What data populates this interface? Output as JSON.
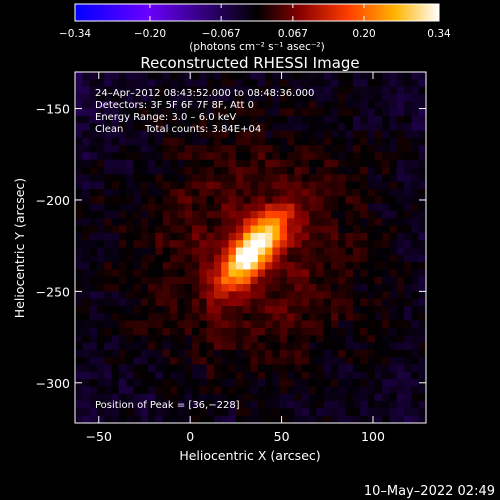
{
  "chart_data": {
    "type": "heatmap",
    "title": "Reconstructed RHESSI Image",
    "xlabel": "Heliocentric X (arcsec)",
    "ylabel": "Heliocentric Y (arcsec)",
    "xlim": [
      -63,
      129
    ],
    "ylim": [
      -322,
      -130
    ],
    "x_ticks": [
      -50,
      0,
      50,
      100
    ],
    "y_ticks": [
      -150,
      -200,
      -250,
      -300
    ],
    "x_tick_labels": [
      "−50",
      "0",
      "50",
      "100"
    ],
    "y_tick_labels": [
      "−150",
      "−200",
      "−250",
      "−300"
    ],
    "colorbar": {
      "range": [
        -0.34,
        0.34
      ],
      "ticks": [
        -0.34,
        -0.2,
        -0.067,
        0.067,
        0.2,
        0.34
      ],
      "tick_labels": [
        "−0.34",
        "−0.20",
        "−0.067",
        "0.067",
        "0.20",
        "0.34"
      ],
      "units_label": "(photons cm⁻² s⁻¹ asec⁻²)",
      "colors": [
        "#0000ff",
        "#6a00ff",
        "#000000",
        "#8a0000",
        "#ff3d00",
        "#ffb400",
        "#ffffff"
      ]
    },
    "annotations": {
      "time_range": "24–Apr–2012 08:43:52.000 to 08:48:36.000",
      "detectors": "Detectors: 3F 5F 6F 7F 8F, Att 0",
      "energy": "Energy Range: 3.0 – 6.0 keV",
      "clean": "Clean",
      "counts": "Total counts: 3.84E+04",
      "peak": "Position of Peak = [36,−228]"
    },
    "peak": {
      "x": 36,
      "y": -228,
      "value": 0.34
    },
    "source": {
      "x": 34,
      "y": -228,
      "sigma_major": 17,
      "sigma_minor": 7,
      "angle_deg": 50
    }
  },
  "footer": {
    "date": "10–May–2022 02:49"
  }
}
